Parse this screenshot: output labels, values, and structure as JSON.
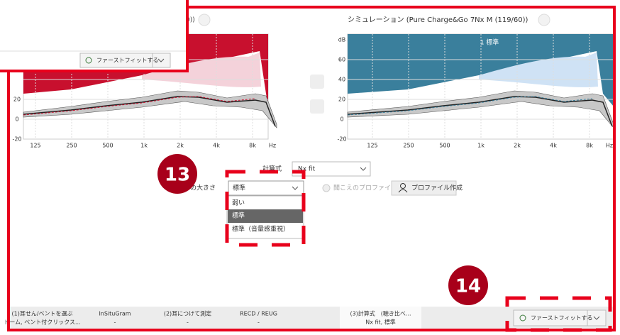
{
  "popup": {
    "button": "ファーストフィットする"
  },
  "left_chart": {
    "title": "0))",
    "yticks": [
      20,
      0,
      -20
    ],
    "xticks": [
      125,
      250,
      500,
      "1k",
      "2k",
      "4k",
      "8k",
      "Hz"
    ]
  },
  "right_chart": {
    "title": "シミュレーション (Pure Charge&Go 7Nx M (119/60))",
    "program": "1 標準",
    "yticks": [
      "dB",
      60,
      40,
      20,
      0,
      -20
    ],
    "xticks": [
      125,
      250,
      500,
      "1k",
      "2k",
      "4k",
      "8k",
      "Hz"
    ]
  },
  "settings": {
    "formula_label": "計算式",
    "formula_value": "Nx fit",
    "loudness_label": "の大きさ",
    "loudness_value": "標準",
    "options": [
      "弱い",
      "標準",
      "標準（音量感重視）"
    ],
    "profile_label": "聞こえのプロファイル",
    "profile_button": "プロファイル作成"
  },
  "annotations": [
    "13",
    "14"
  ],
  "tabs": [
    {
      "title": "(1)耳せん/ベントを選ぶ",
      "subtitle": "ドーム, ベント付クリックス..."
    },
    {
      "title": "InSituGram",
      "subtitle": "-"
    },
    {
      "title": "(2)耳につけて測定",
      "subtitle": "-"
    },
    {
      "title": "RECD / REUG",
      "subtitle": "-"
    },
    {
      "title": "(3)計算式　(聴き比べ...",
      "subtitle": "Nx fit, 標準"
    }
  ],
  "fit_button": "ファーストフィットする"
}
